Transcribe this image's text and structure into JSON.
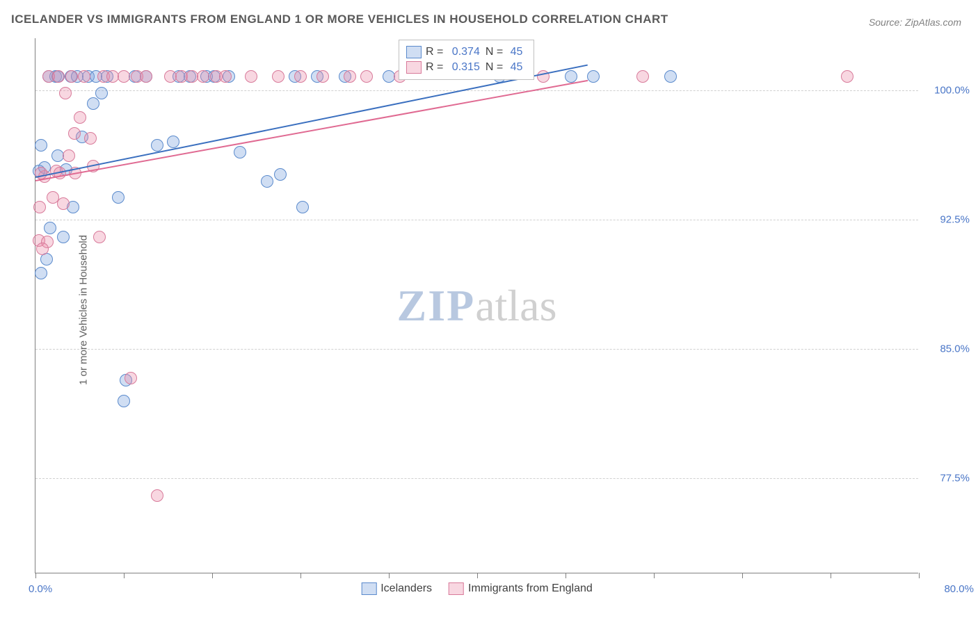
{
  "title": "ICELANDER VS IMMIGRANTS FROM ENGLAND 1 OR MORE VEHICLES IN HOUSEHOLD CORRELATION CHART",
  "source_label": "Source: ",
  "source_name": "ZipAtlas.com",
  "y_axis_label": "1 or more Vehicles in Household",
  "watermark_zip": "ZIP",
  "watermark_atlas": "atlas",
  "chart": {
    "type": "scatter",
    "xlim": [
      0,
      80
    ],
    "ylim": [
      72,
      103
    ],
    "x_ticks": [
      0,
      8,
      16,
      24,
      32,
      40,
      48,
      56,
      64,
      72,
      80
    ],
    "x_tick_labels_visible": {
      "0": "0.0%",
      "80": "80.0%"
    },
    "y_gridlines": [
      77.5,
      85.0,
      92.5,
      100.0
    ],
    "y_tick_labels": [
      "77.5%",
      "85.0%",
      "92.5%",
      "100.0%"
    ],
    "background_color": "#ffffff",
    "grid_color": "#d0d0d0",
    "axis_color": "#808080",
    "tick_label_color": "#4a76c7",
    "series": [
      {
        "name": "Icelanders",
        "fill_color": "rgba(120,160,220,0.35)",
        "stroke_color": "#5a8acc",
        "marker_radius": 9,
        "R": "0.374",
        "N": "45",
        "trend": {
          "x1": 0,
          "y1": 95.0,
          "x2": 50,
          "y2": 101.5,
          "color": "#3a6fbf",
          "width": 2
        },
        "points": [
          [
            0.3,
            95.3
          ],
          [
            0.5,
            89.4
          ],
          [
            0.8,
            95.5
          ],
          [
            1.2,
            100.8
          ],
          [
            1.3,
            92.0
          ],
          [
            1.8,
            100.8
          ],
          [
            2.0,
            100.8
          ],
          [
            2.0,
            96.2
          ],
          [
            2.5,
            91.5
          ],
          [
            2.8,
            95.4
          ],
          [
            3.2,
            100.8
          ],
          [
            3.4,
            93.2
          ],
          [
            3.8,
            100.8
          ],
          [
            4.2,
            97.3
          ],
          [
            4.8,
            100.8
          ],
          [
            5.2,
            99.2
          ],
          [
            5.5,
            100.8
          ],
          [
            6.0,
            99.8
          ],
          [
            6.5,
            100.8
          ],
          [
            7.5,
            93.8
          ],
          [
            8.0,
            82.0
          ],
          [
            8.2,
            83.2
          ],
          [
            9.0,
            100.8
          ],
          [
            10.0,
            100.8
          ],
          [
            11.0,
            96.8
          ],
          [
            12.5,
            97.0
          ],
          [
            13.0,
            100.8
          ],
          [
            14.0,
            100.8
          ],
          [
            15.5,
            100.8
          ],
          [
            16.2,
            100.8
          ],
          [
            17.5,
            100.8
          ],
          [
            18.5,
            96.4
          ],
          [
            21.0,
            94.7
          ],
          [
            22.2,
            95.1
          ],
          [
            23.5,
            100.8
          ],
          [
            24.2,
            93.2
          ],
          [
            25.5,
            100.8
          ],
          [
            28.0,
            100.8
          ],
          [
            32.0,
            100.8
          ],
          [
            42.0,
            100.8
          ],
          [
            48.5,
            100.8
          ],
          [
            50.5,
            100.8
          ],
          [
            57.5,
            100.8
          ],
          [
            1.0,
            90.2
          ],
          [
            0.5,
            96.8
          ]
        ]
      },
      {
        "name": "Immigrants from England",
        "fill_color": "rgba(235,140,170,0.35)",
        "stroke_color": "#d87a9a",
        "marker_radius": 9,
        "R": "0.315",
        "N": "45",
        "trend": {
          "x1": 0,
          "y1": 94.8,
          "x2": 50,
          "y2": 100.6,
          "color": "#e06a92",
          "width": 2
        },
        "points": [
          [
            0.3,
            91.3
          ],
          [
            0.4,
            93.2
          ],
          [
            0.8,
            95.0
          ],
          [
            1.1,
            91.2
          ],
          [
            1.2,
            100.8
          ],
          [
            1.6,
            93.8
          ],
          [
            1.9,
            95.3
          ],
          [
            2.1,
            100.8
          ],
          [
            2.5,
            93.4
          ],
          [
            2.7,
            99.8
          ],
          [
            3.0,
            96.2
          ],
          [
            3.3,
            100.8
          ],
          [
            3.6,
            95.2
          ],
          [
            4.0,
            98.4
          ],
          [
            4.4,
            100.8
          ],
          [
            5.0,
            97.2
          ],
          [
            5.2,
            95.6
          ],
          [
            5.8,
            91.5
          ],
          [
            6.2,
            100.8
          ],
          [
            7.0,
            100.8
          ],
          [
            8.0,
            100.8
          ],
          [
            8.6,
            83.3
          ],
          [
            9.2,
            100.8
          ],
          [
            10.0,
            100.8
          ],
          [
            11.0,
            76.5
          ],
          [
            12.2,
            100.8
          ],
          [
            13.2,
            100.8
          ],
          [
            14.2,
            100.8
          ],
          [
            15.2,
            100.8
          ],
          [
            16.4,
            100.8
          ],
          [
            17.2,
            100.8
          ],
          [
            19.5,
            100.8
          ],
          [
            22.0,
            100.8
          ],
          [
            24.0,
            100.8
          ],
          [
            26.0,
            100.8
          ],
          [
            28.5,
            100.8
          ],
          [
            30.0,
            100.8
          ],
          [
            33.0,
            100.8
          ],
          [
            46.0,
            100.8
          ],
          [
            55.0,
            100.8
          ],
          [
            73.5,
            100.8
          ],
          [
            0.6,
            90.8
          ],
          [
            0.5,
            95.2
          ],
          [
            2.2,
            95.2
          ],
          [
            3.5,
            97.5
          ]
        ]
      }
    ],
    "legend_R_label": "R = ",
    "legend_N_label": "N = ",
    "legend_value_color": "#4a76c7"
  }
}
